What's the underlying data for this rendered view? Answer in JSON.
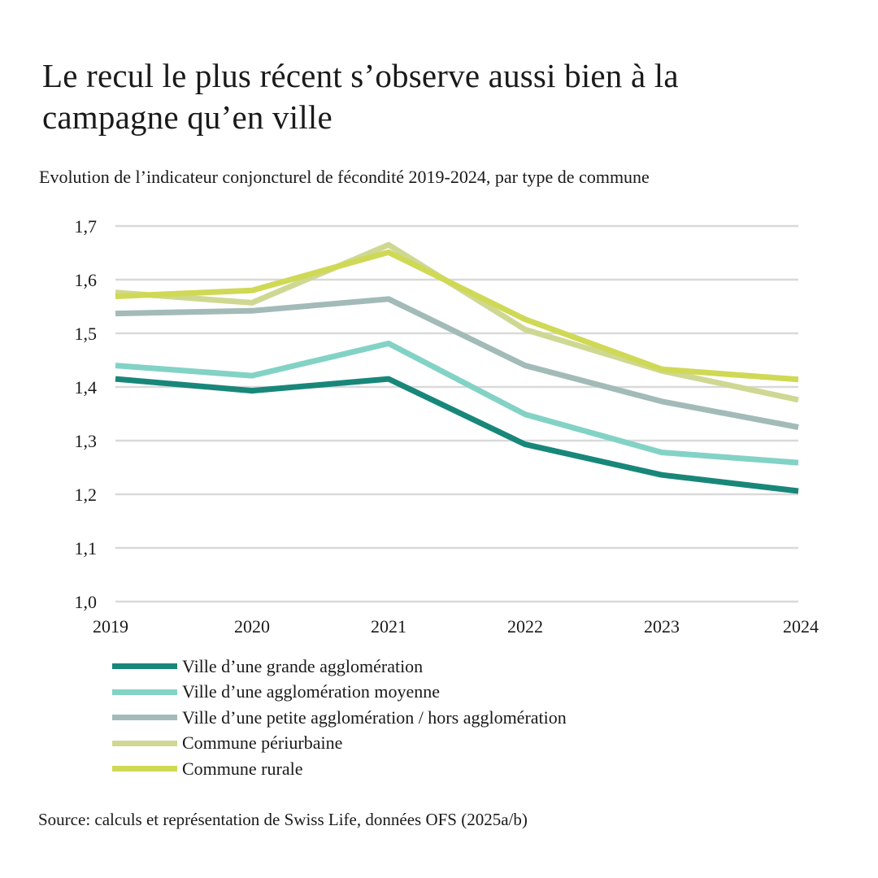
{
  "title": "Le recul le plus récent s’observe aussi bien à la campagne qu’en ville",
  "subtitle": "Evolution de l’indicateur conjoncturel de fécondité 2019-2024, par type de commune",
  "source": "Source: calculs et représentation de Swiss Life, données OFS (2025a/b)",
  "chart_data": {
    "type": "line",
    "x": [
      "2019",
      "2020",
      "2021",
      "2022",
      "2023",
      "2024"
    ],
    "ylim": [
      1.0,
      1.7
    ],
    "yticks": [
      "1,0",
      "1,1",
      "1,2",
      "1,3",
      "1,4",
      "1,5",
      "1,6",
      "1,7"
    ],
    "grid": true,
    "legend_position": "bottom",
    "series": [
      {
        "name": "Ville d’une grande agglomération",
        "color": "#18877a",
        "values": [
          1.415,
          1.393,
          1.415,
          1.293,
          1.236,
          1.206
        ]
      },
      {
        "name": "Ville d’une agglomération moyenne",
        "color": "#83d2c6",
        "values": [
          1.44,
          1.421,
          1.481,
          1.349,
          1.278,
          1.259
        ]
      },
      {
        "name": "Ville d’une petite agglomération / hors agglomération",
        "color": "#a3bbb8",
        "values": [
          1.537,
          1.542,
          1.564,
          1.44,
          1.373,
          1.325
        ]
      },
      {
        "name": "Commune périurbaine",
        "color": "#cfd893",
        "values": [
          1.576,
          1.557,
          1.665,
          1.507,
          1.43,
          1.376
        ]
      },
      {
        "name": "Commune rurale",
        "color": "#cfd955",
        "values": [
          1.569,
          1.58,
          1.651,
          1.526,
          1.433,
          1.414
        ]
      }
    ]
  }
}
